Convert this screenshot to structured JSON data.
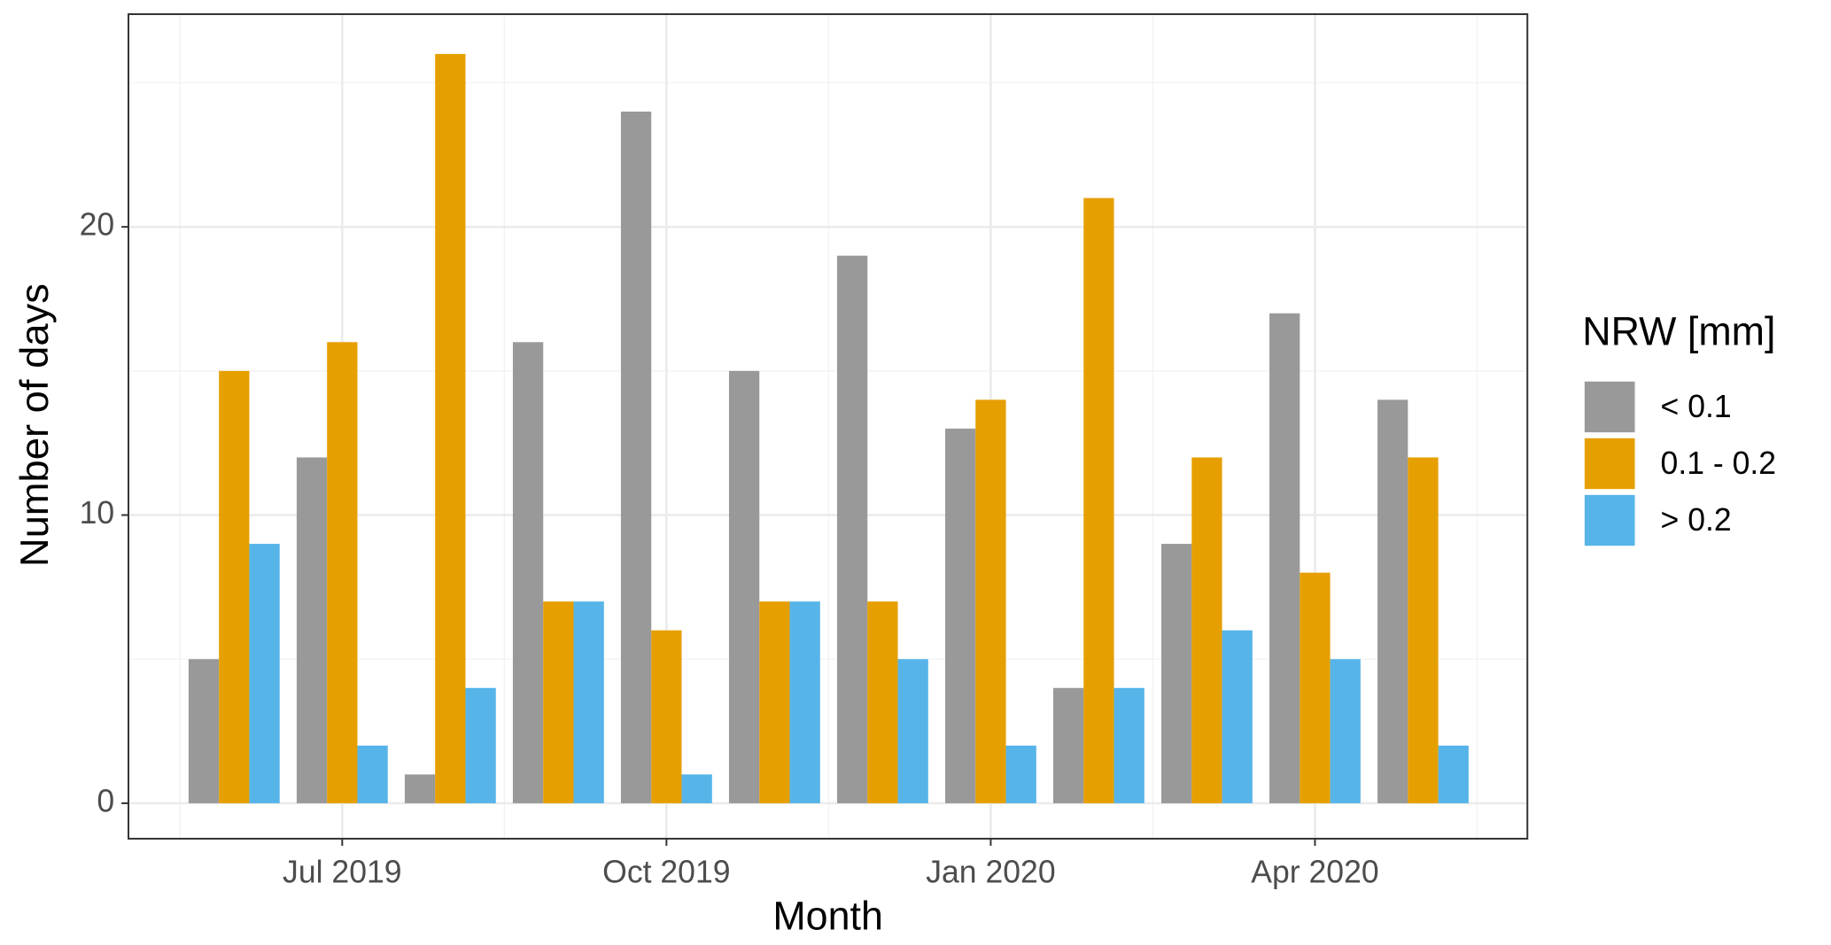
{
  "chart_data": {
    "type": "bar",
    "x_label": "Month",
    "y_label": "Number of days",
    "legend_title": "NRW [mm]",
    "legend_position": "right",
    "categories": [
      null,
      "Jul 2019",
      null,
      null,
      "Oct 2019",
      null,
      null,
      "Jan 2020",
      null,
      null,
      "Apr 2020",
      null
    ],
    "series": [
      {
        "name": "< 0.1",
        "color": "#999999",
        "values": [
          5,
          12,
          1,
          16,
          24,
          15,
          19,
          13,
          4,
          9,
          17,
          14
        ]
      },
      {
        "name": "0.1 - 0.2",
        "color": "#E69F00",
        "values": [
          15,
          16,
          26,
          7,
          6,
          7,
          7,
          14,
          21,
          12,
          8,
          12
        ]
      },
      {
        "name": "> 0.2",
        "color": "#56B4E9",
        "values": [
          9,
          2,
          4,
          7,
          1,
          7,
          5,
          2,
          4,
          6,
          5,
          2
        ]
      }
    ],
    "ylim": [
      -1.23,
      27.38
    ],
    "yticks": [
      0,
      10,
      20
    ],
    "grid": true
  }
}
